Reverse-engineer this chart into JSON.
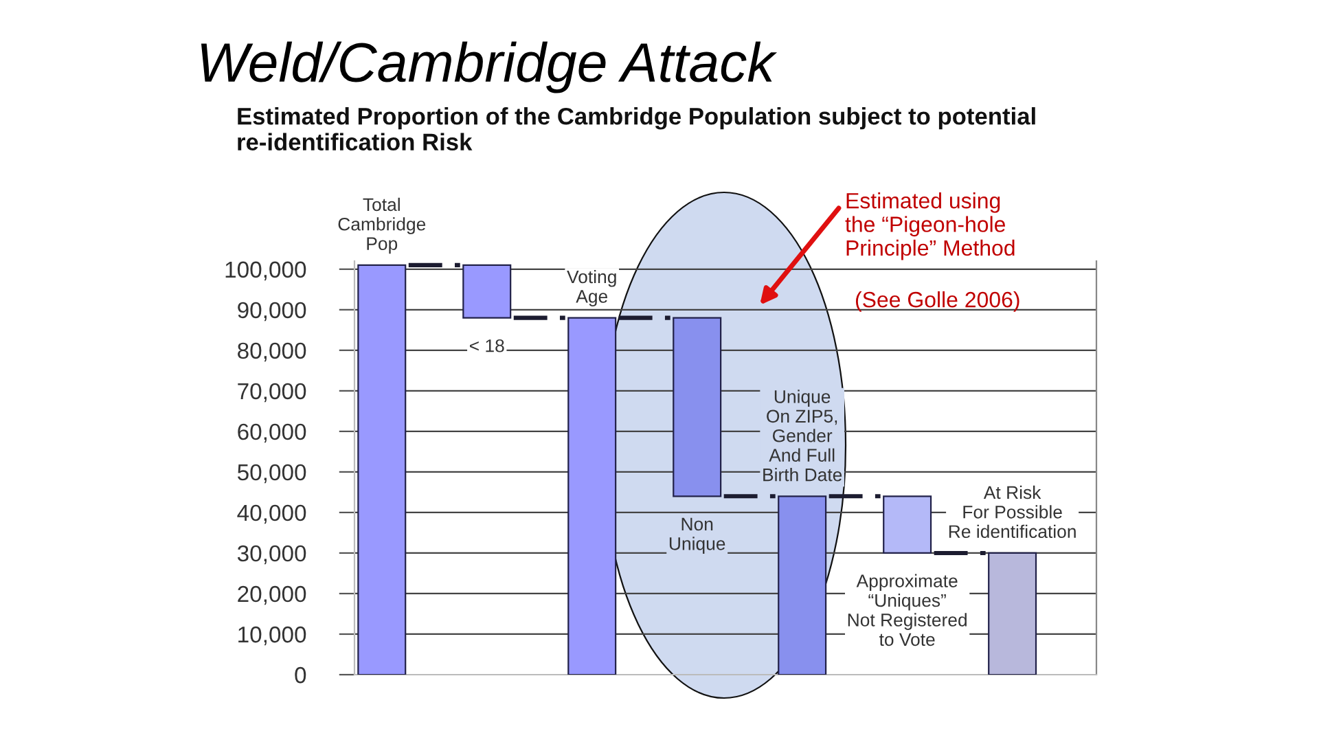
{
  "chart_data": {
    "type": "bar",
    "title": "Weld/Cambridge Attack",
    "subtitle": "Estimated Proportion of the Cambridge Population subject to potential\nre-identification Risk",
    "categories": [
      "Total\nCambridge\nPop",
      "< 18",
      "Voting\nAge",
      "Non\nUnique",
      "Unique\nOn ZIP5,\nGender\nAnd Full\nBirth Date",
      "Approximate\n“Uniques”\nNot Registered\nto Vote",
      "At Risk\nFor Possible\nRe identification"
    ],
    "values": [
      101000,
      -13000,
      88000,
      -44000,
      44000,
      -14000,
      30000
    ],
    "base": [
      0,
      101000,
      0,
      88000,
      0,
      44000,
      0
    ],
    "colors": [
      "#9999ff",
      "#9999ff",
      "#9999ff",
      "#8890ee",
      "#8890ee",
      "#b4b9f8",
      "#b8b8dc"
    ],
    "ylim": [
      0,
      102000
    ],
    "yticks": [
      0,
      {
        "value": 10000,
        "label": "10,000"
      },
      {
        "value": 20000,
        "label": "20,000"
      },
      {
        "value": 30000,
        "label": "30,000"
      },
      {
        "value": 40000,
        "label": "40,000"
      },
      {
        "value": 50000,
        "label": "50,000"
      },
      {
        "value": 60000,
        "label": "60,000"
      },
      {
        "value": 70000,
        "label": "70,000"
      },
      {
        "value": 80000,
        "label": "80,000"
      },
      {
        "value": 90000,
        "label": "90,000"
      },
      {
        "value": 100000,
        "label": "100,000"
      }
    ],
    "grid": "y",
    "annotations": [
      "Estimated using\nthe “Pigeon-hole\nPrinciple” Method",
      "(See Golle 2006)"
    ]
  }
}
